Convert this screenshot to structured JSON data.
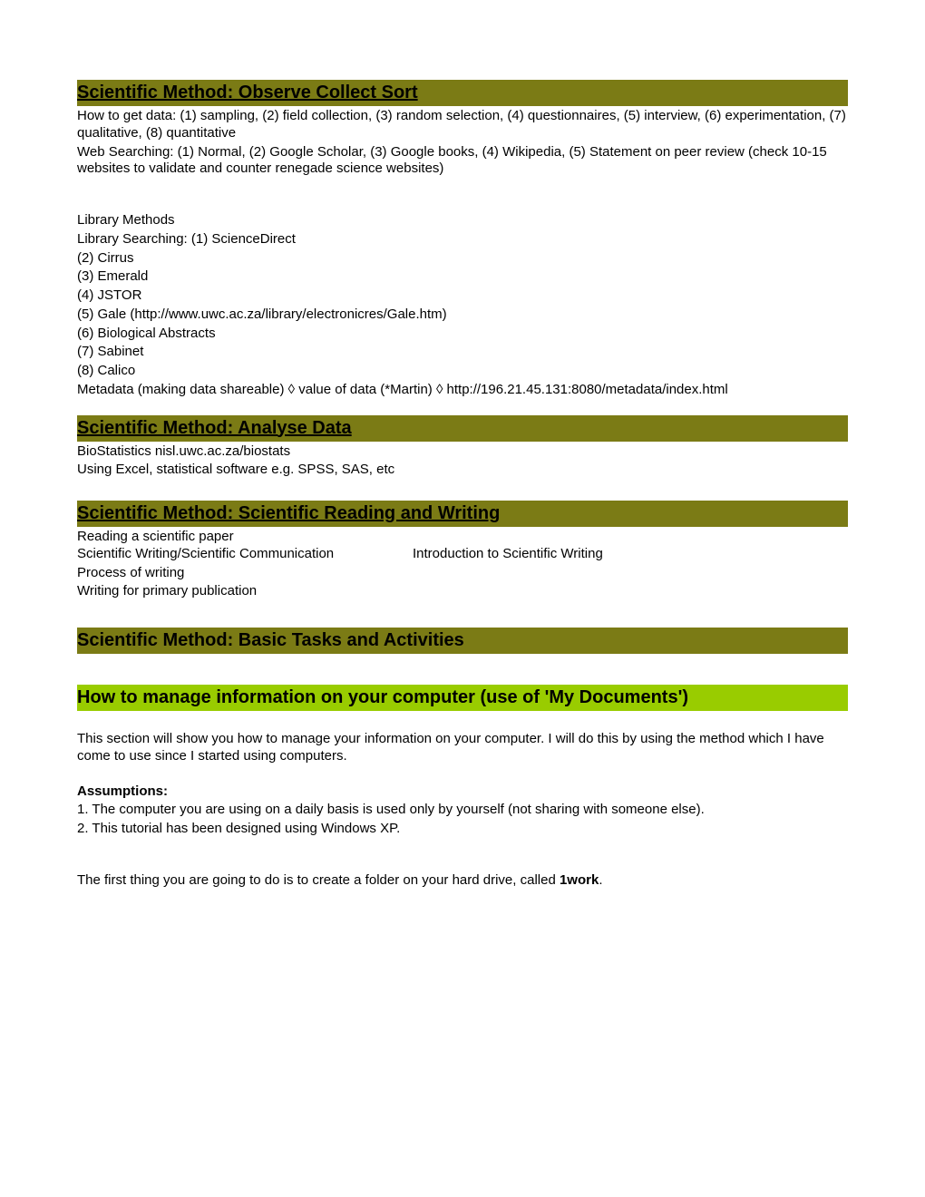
{
  "colors": {
    "olive_bg": "#7b7b15",
    "lime_bg": "#99cc00",
    "text": "#000000",
    "page_bg": "#ffffff"
  },
  "typography": {
    "heading_fontsize": 20,
    "body_fontsize": 15,
    "font_family": "Arial"
  },
  "sections": {
    "observe": {
      "title": "Scientific Method: Observe Collect Sort",
      "how_to_get_data": "How to get data: (1) sampling, (2) field collection, (3) random selection, (4) questionnaires, (5) interview, (6) experimentation, (7) qualitative, (8) quantitative",
      "web_searching": "Web Searching: (1) Normal, (2) Google Scholar, (3) Google books, (4) Wikipedia, (5) Statement on peer review (check 10-15 websites to validate and counter renegade science websites)",
      "library_methods_label": "Library Methods",
      "library_searching_intro": "Library Searching: (1) ScienceDirect",
      "lib2": "(2) Cirrus",
      "lib3": "(3) Emerald",
      "lib4": "(4) JSTOR",
      "lib5": "(5) Gale (http://www.uwc.ac.za/library/electronicres/Gale.htm)",
      "lib6": "(6) Biological Abstracts",
      "lib7": "(7) Sabinet",
      "lib8": "(8) Calico",
      "metadata": "Metadata (making data shareable) ◊ value of data (*Martin) ◊ http://196.21.45.131:8080/metadata/index.html"
    },
    "analyse": {
      "title": "Scientific Method: Analyse Data",
      "line1": "BioStatistics nisl.uwc.ac.za/biostats",
      "line2": "Using Excel, statistical software e.g. SPSS, SAS, etc"
    },
    "reading_writing": {
      "title": "Scientific Method: Scientific Reading and Writing",
      "line1": "Reading a scientific paper",
      "line2a": "Scientific Writing/Scientific Communication",
      "line2b": "Introduction to Scientific Writing",
      "line3": "Process of writing",
      "line4": "Writing for primary publication"
    },
    "basic_tasks": {
      "title": "Scientific Method: Basic Tasks and Activities"
    },
    "manage_info": {
      "title": "How to manage information on your computer (use of 'My Documents')",
      "intro": "This section will show you how to manage your information on your computer. I will do this by using the method which I have come to use since I started using computers.",
      "assumptions_label": "Assumptions:",
      "assumption1": "1. The computer you are using on a daily basis is used only by yourself (not sharing with someone else).",
      "assumption2": "2. This tutorial has been designed using Windows XP.",
      "first_thing_pre": "The first thing you are going to do is to create a folder on your hard drive, called ",
      "first_thing_bold": "1work",
      "first_thing_post": "."
    }
  }
}
